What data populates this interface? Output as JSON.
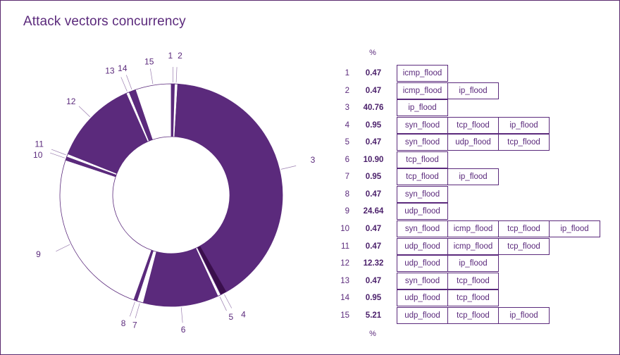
{
  "title": "Attack vectors concurrency",
  "table": {
    "header_top": "%",
    "header_bottom": "%"
  },
  "colors": {
    "accent": "#5b2a7c",
    "accent_dark": "#3a0f4c",
    "white": "#ffffff"
  },
  "chart_data": {
    "type": "pie",
    "title": "Attack vectors concurrency",
    "slices": [
      {
        "label": "1",
        "value": 0.47,
        "vectors": [
          "icmp_flood"
        ]
      },
      {
        "label": "2",
        "value": 0.47,
        "vectors": [
          "icmp_flood",
          "ip_flood"
        ]
      },
      {
        "label": "3",
        "value": 40.76,
        "vectors": [
          "ip_flood"
        ]
      },
      {
        "label": "4",
        "value": 0.95,
        "vectors": [
          "syn_flood",
          "tcp_flood",
          "ip_flood"
        ]
      },
      {
        "label": "5",
        "value": 0.47,
        "vectors": [
          "syn_flood",
          "udp_flood",
          "tcp_flood"
        ]
      },
      {
        "label": "6",
        "value": 10.9,
        "vectors": [
          "tcp_flood"
        ]
      },
      {
        "label": "7",
        "value": 0.95,
        "vectors": [
          "tcp_flood",
          "ip_flood"
        ]
      },
      {
        "label": "8",
        "value": 0.47,
        "vectors": [
          "syn_flood"
        ]
      },
      {
        "label": "9",
        "value": 24.64,
        "vectors": [
          "udp_flood"
        ]
      },
      {
        "label": "10",
        "value": 0.47,
        "vectors": [
          "syn_flood",
          "icmp_flood",
          "tcp_flood",
          "ip_flood"
        ]
      },
      {
        "label": "11",
        "value": 0.47,
        "vectors": [
          "udp_flood",
          "icmp_flood",
          "tcp_flood"
        ]
      },
      {
        "label": "12",
        "value": 12.32,
        "vectors": [
          "udp_flood",
          "ip_flood"
        ]
      },
      {
        "label": "13",
        "value": 0.47,
        "vectors": [
          "syn_flood",
          "tcp_flood"
        ]
      },
      {
        "label": "14",
        "value": 0.95,
        "vectors": [
          "udp_flood",
          "tcp_flood"
        ]
      },
      {
        "label": "15",
        "value": 5.21,
        "vectors": [
          "udp_flood",
          "tcp_flood",
          "ip_flood"
        ]
      }
    ],
    "values_display": [
      "0.47",
      "0.47",
      "40.76",
      "0.95",
      "0.47",
      "10.90",
      "0.95",
      "0.47",
      "24.64",
      "0.47",
      "0.47",
      "12.32",
      "0.47",
      "0.95",
      "5.21"
    ],
    "fills": [
      "#5b2a7c",
      "#ffffff",
      "#5b2a7c",
      "#3a0f4c",
      "#ffffff",
      "#5b2a7c",
      "#ffffff",
      "#5b2a7c",
      "#ffffff",
      "#5b2a7c",
      "#ffffff",
      "#5b2a7c",
      "#ffffff",
      "#5b2a7c",
      "#ffffff"
    ]
  }
}
